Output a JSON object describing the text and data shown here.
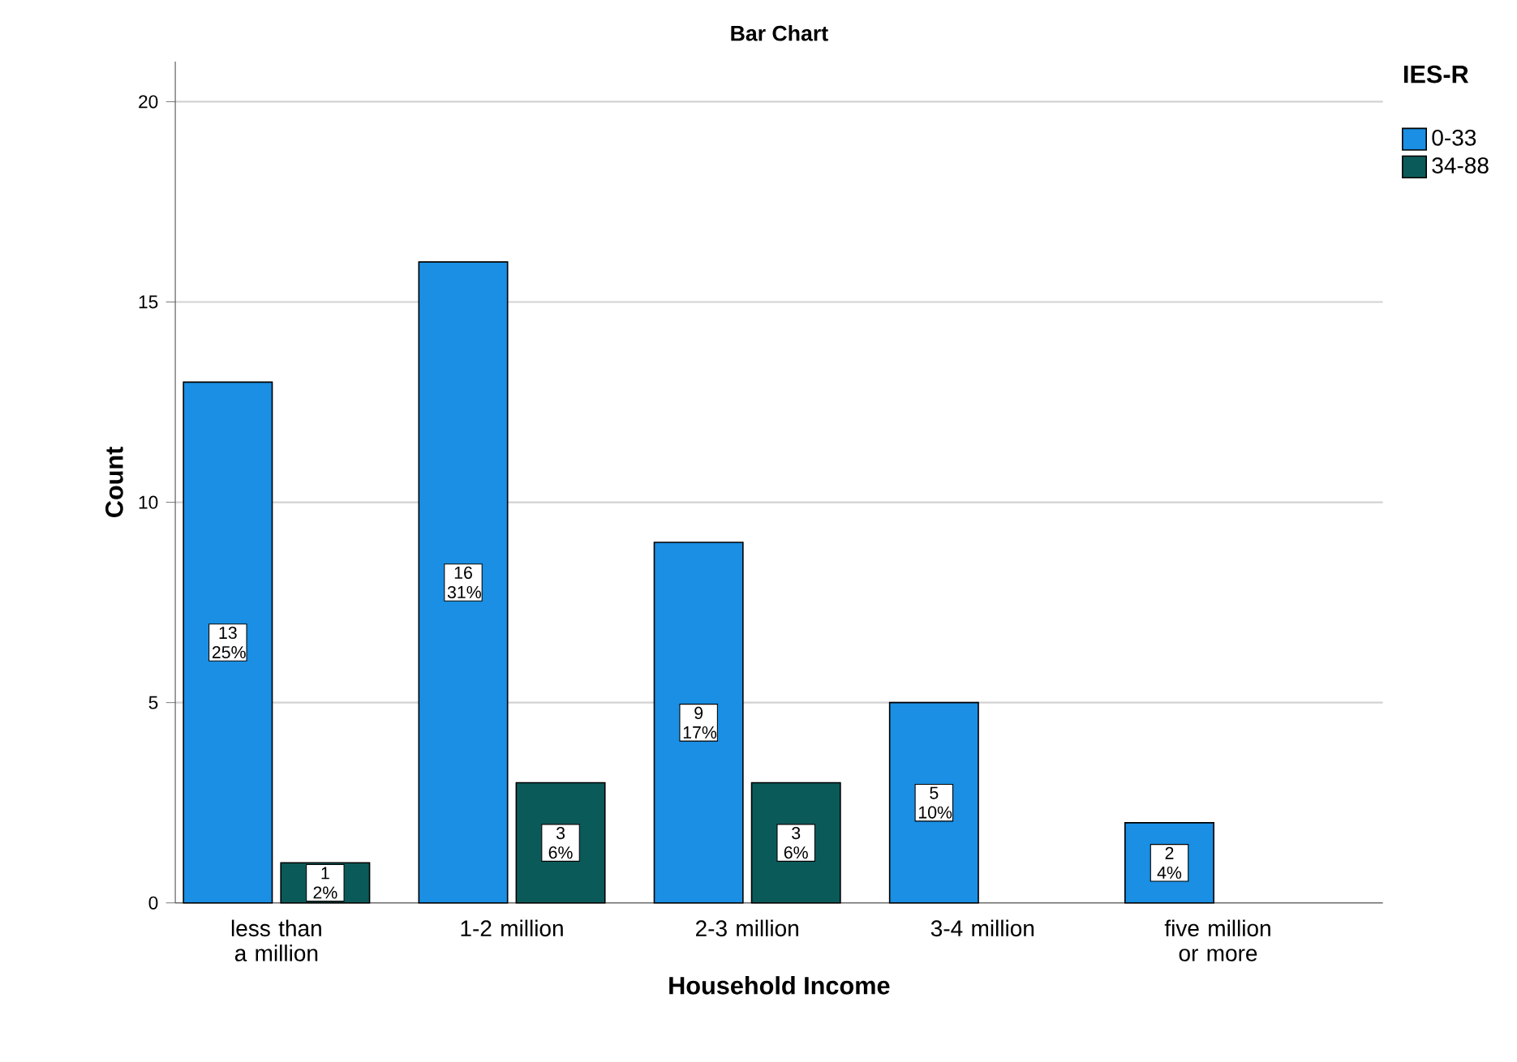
{
  "chart_data": {
    "type": "bar",
    "title": "Bar Chart",
    "xlabel": "Household Income",
    "ylabel": "Count",
    "legend_title": "IES-R",
    "categories": [
      "less than a million",
      "1-2 million",
      "2-3 million",
      "3-4 million",
      "five million or more"
    ],
    "series": [
      {
        "name": "0-33",
        "color": "#1a8fe3",
        "values": [
          13,
          16,
          9,
          5,
          2
        ],
        "value_labels": [
          "13 25%",
          "16 31%",
          "9 17%",
          "5 10%",
          "2 4%"
        ]
      },
      {
        "name": "34-88",
        "color": "#0b5a5a",
        "values": [
          1,
          3,
          3,
          null,
          null
        ],
        "value_labels": [
          "1 2%",
          "3 6%",
          "3 6%",
          null,
          null
        ]
      }
    ],
    "ylim": [
      0,
      21
    ],
    "yticks": [
      0,
      5,
      10,
      15,
      20
    ],
    "grid": "y",
    "legend": "top right"
  }
}
